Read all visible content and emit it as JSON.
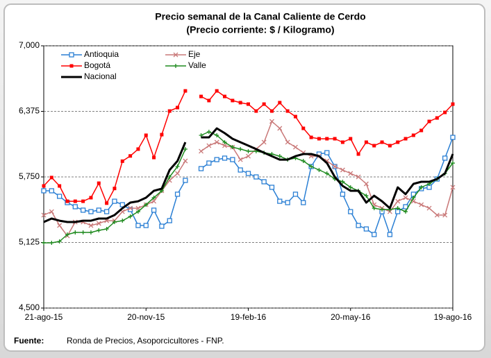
{
  "chart_data": {
    "type": "line",
    "title": "Precio semanal de la Canal Caliente de Cerdo",
    "subtitle": "(Precio corriente: $ / Kilogramo)",
    "categories": [
      "21-ago-15",
      null,
      null,
      null,
      null,
      null,
      null,
      null,
      null,
      null,
      null,
      null,
      null,
      "20-nov-15",
      null,
      null,
      null,
      null,
      null,
      null,
      null,
      null,
      null,
      null,
      null,
      null,
      "19-feb-16",
      null,
      null,
      null,
      null,
      null,
      null,
      null,
      null,
      null,
      null,
      null,
      null,
      "20-may-16",
      null,
      null,
      null,
      null,
      null,
      null,
      null,
      null,
      null,
      null,
      null,
      null,
      "19-ago-16"
    ],
    "ylim": [
      4500,
      7000
    ],
    "yticks": [
      {
        "value": 4500,
        "label": "4,500"
      },
      {
        "value": 5125,
        "label": "5,125"
      },
      {
        "value": 5750,
        "label": "5,750"
      },
      {
        "value": 6375,
        "label": "6,375"
      },
      {
        "value": 7000,
        "label": "7,000"
      }
    ],
    "grid": true,
    "legend": "top-left",
    "series": [
      {
        "name": "Antioquia",
        "color": "#2a7fd4",
        "marker": "square-open",
        "width": 1.5,
        "values": [
          5618,
          5618,
          5565,
          5505,
          5466,
          5433,
          5419,
          5433,
          5419,
          5518,
          5485,
          5439,
          5287,
          5287,
          5433,
          5280,
          5333,
          5585,
          5717,
          null,
          5829,
          5882,
          5915,
          5929,
          5915,
          5816,
          5783,
          5750,
          5704,
          5651,
          5518,
          5505,
          5585,
          5505,
          5849,
          5968,
          5981,
          5849,
          5585,
          5419,
          5287,
          5254,
          5201,
          5419,
          5201,
          5419,
          5466,
          5585,
          5638,
          5651,
          5730,
          5929,
          6127
        ]
      },
      {
        "name": "Eje",
        "color": "#c97878",
        "marker": "x",
        "width": 1.5,
        "values": [
          5386,
          5419,
          5287,
          5188,
          5320,
          5320,
          5287,
          5307,
          5333,
          5333,
          5419,
          5452,
          5452,
          5485,
          5518,
          5618,
          5717,
          5783,
          5902,
          null,
          5995,
          6048,
          6081,
          6048,
          6034,
          5915,
          5948,
          6015,
          6081,
          6279,
          6213,
          6081,
          6034,
          5981,
          5948,
          5948,
          5902,
          5849,
          5816,
          5783,
          5750,
          5684,
          5485,
          5452,
          5419,
          5518,
          5552,
          5518,
          5485,
          5452,
          5386,
          5386,
          5651
        ]
      },
      {
        "name": "Bogotá",
        "color": "#ff0000",
        "marker": "square",
        "width": 1.5,
        "values": [
          5664,
          5744,
          5664,
          5518,
          5518,
          5518,
          5552,
          5690,
          5500,
          5640,
          5900,
          5950,
          6015,
          6147,
          5935,
          6153,
          6378,
          6411,
          6570,
          null,
          6517,
          6478,
          6570,
          6517,
          6478,
          6458,
          6444,
          6378,
          6444,
          6378,
          6458,
          6378,
          6325,
          6213,
          6127,
          6114,
          6114,
          6114,
          6081,
          6114,
          5968,
          6081,
          6048,
          6081,
          6048,
          6081,
          6114,
          6147,
          6193,
          6279,
          6312,
          6365,
          6444
        ]
      },
      {
        "name": "Valle",
        "color": "#1e8a1e",
        "marker": "plus",
        "width": 1.5,
        "values": [
          5122,
          5122,
          5135,
          5201,
          5221,
          5221,
          5221,
          5241,
          5254,
          5320,
          5333,
          5373,
          5419,
          5485,
          5552,
          5618,
          5750,
          5849,
          6015,
          null,
          6147,
          6180,
          6147,
          6081,
          6034,
          6015,
          5995,
          5995,
          5981,
          5968,
          5948,
          5915,
          5929,
          5902,
          5849,
          5816,
          5783,
          5730,
          5704,
          5651,
          5618,
          5571,
          5452,
          5439,
          5439,
          5452,
          5419,
          5552,
          5651,
          5684,
          5730,
          5783,
          5882
        ]
      },
      {
        "name": "Nacional",
        "color": "#000000",
        "marker": "none",
        "width": 3,
        "values": [
          5320,
          5353,
          5333,
          5320,
          5320,
          5333,
          5333,
          5353,
          5353,
          5386,
          5452,
          5505,
          5518,
          5552,
          5618,
          5638,
          5816,
          5902,
          6081,
          null,
          6127,
          6127,
          6213,
          6167,
          6114,
          6081,
          6048,
          6015,
          5981,
          5948,
          5915,
          5915,
          5948,
          5968,
          5968,
          5948,
          5882,
          5750,
          5664,
          5618,
          5618,
          5505,
          5571,
          5518,
          5452,
          5651,
          5585,
          5684,
          5704,
          5704,
          5730,
          5783,
          5968
        ]
      }
    ]
  },
  "footer": {
    "source_label": "Fuente:",
    "source_text": "Ronda de Precios, Asoporcicultores - FNP."
  }
}
